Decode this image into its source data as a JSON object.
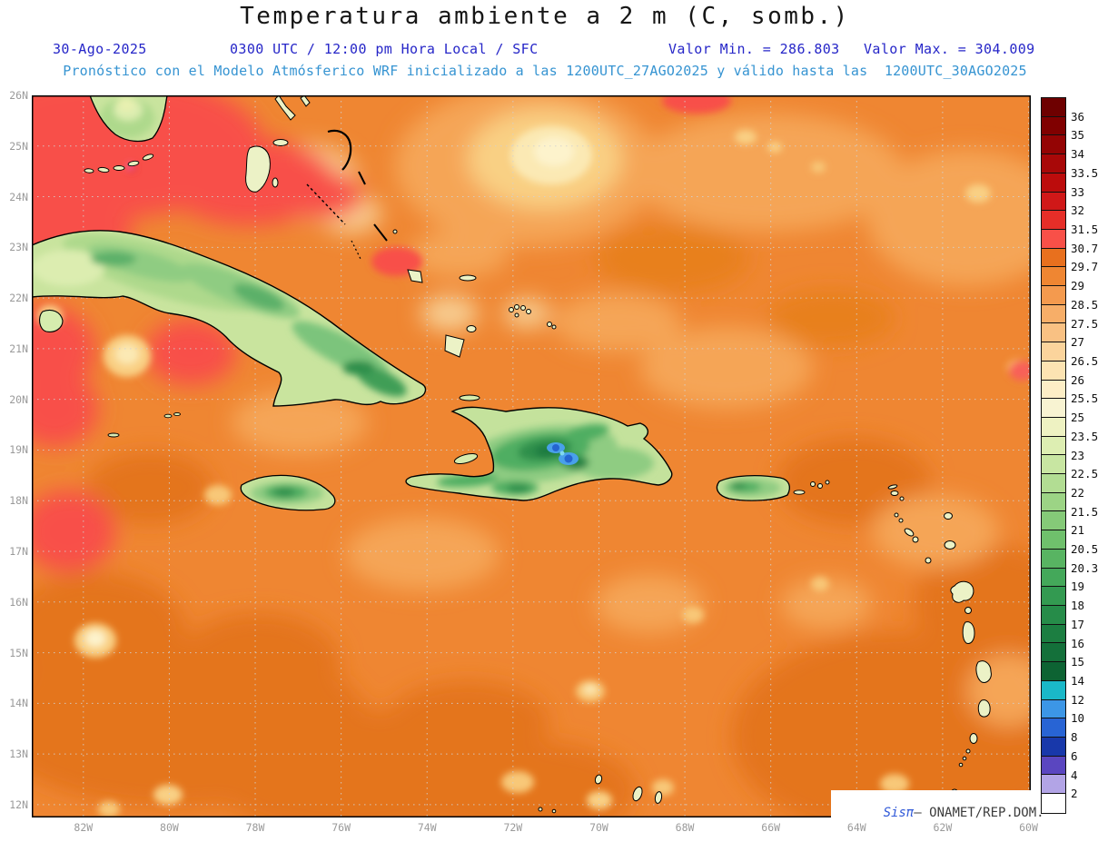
{
  "title": "Temperatura ambiente a 2 m (C, somb.)",
  "header": {
    "date": "30-Ago-2025",
    "time_info": "0300 UTC / 12:00 pm Hora Local / SFC",
    "min_label": "Valor Min. = 286.803",
    "max_label": "Valor Max. = 304.009",
    "forecast_info": "Pronóstico con el Modelo Atmósferico WRF inicializado a las 1200UTC_27AGO2025 y válido hasta las  1200UTC_30AGO2025"
  },
  "map": {
    "lat_ticks": [
      "26N",
      "25N",
      "24N",
      "23N",
      "22N",
      "21N",
      "20N",
      "19N",
      "18N",
      "17N",
      "16N",
      "15N",
      "14N",
      "13N",
      "12N"
    ],
    "lon_ticks": [
      "82W",
      "80W",
      "78W",
      "76W",
      "74W",
      "72W",
      "70W",
      "68W",
      "66W",
      "64W",
      "62W",
      "60W"
    ]
  },
  "legend": {
    "labels": [
      "36",
      "35",
      "34",
      "33.5",
      "33",
      "32",
      "31.5",
      "30.7",
      "29.7",
      "29",
      "28.5",
      "27.5",
      "27",
      "26.5",
      "26",
      "25.5",
      "25",
      "23.5",
      "23",
      "22.5",
      "22",
      "21.5",
      "21",
      "20.5",
      "20.3",
      "19",
      "18",
      "17",
      "16",
      "15",
      "14",
      "12",
      "10",
      "8",
      "6",
      "4",
      "2"
    ],
    "colors": [
      "#6e0000",
      "#800000",
      "#940404",
      "#a80808",
      "#bc0c0c",
      "#d01818",
      "#e62e28",
      "#f85048",
      "#e8701e",
      "#ef8632",
      "#f49a4e",
      "#f7ae68",
      "#f9c183",
      "#fbd49c",
      "#fce3b2",
      "#fdeec6",
      "#f8f3d2",
      "#eef2c2",
      "#ddeeb2",
      "#c8e6a2",
      "#b2dd93",
      "#9cd485",
      "#85ca78",
      "#6fc06c",
      "#58b462",
      "#44a85a",
      "#339a51",
      "#268c49",
      "#1c7e41",
      "#14703a",
      "#0d6333",
      "#1ab8c8",
      "#3c96e6",
      "#2864d4",
      "#1838aa",
      "#5a46c0",
      "#b2a4e6",
      "#ffffff"
    ]
  },
  "watermark": {
    "brand": "Sisπ",
    "text": "– ONAMET/REP.DOM."
  },
  "accent_colors": {
    "header_blue": "#2626c8",
    "forecast_blue": "#3694d2",
    "sea_base": "#ef8632"
  }
}
